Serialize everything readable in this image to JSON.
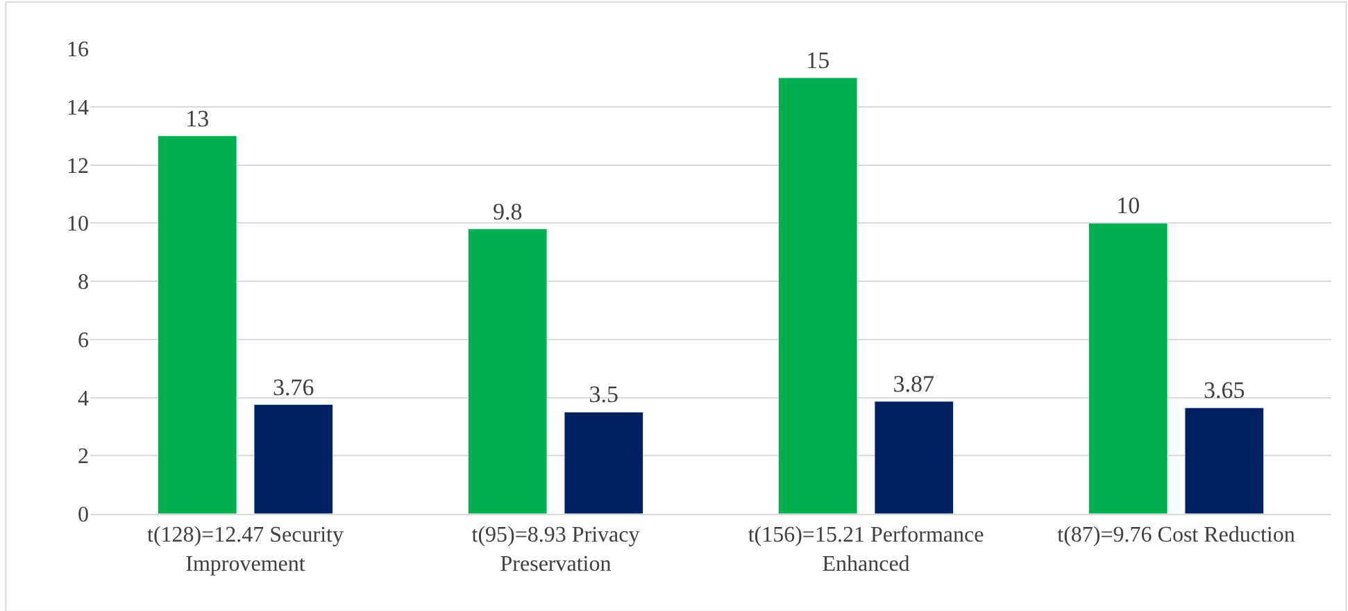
{
  "chart_data": {
    "type": "bar",
    "categories": [
      "t(128)=12.47 Security Improvement",
      "t(95)=8.93 Privacy Preservation",
      "t(156)=15.21 Performance Enhanced",
      "t(87)=9.76 Cost Reduction"
    ],
    "series": [
      {
        "color": "#00b050",
        "values": [
          13,
          9.8,
          15,
          10
        ]
      },
      {
        "color": "#002060",
        "values": [
          3.76,
          3.5,
          3.87,
          3.65
        ]
      }
    ],
    "ylim": [
      0,
      16
    ],
    "yticks": [
      0,
      2,
      4,
      6,
      8,
      10,
      12,
      14,
      16
    ],
    "grid": "y",
    "data_labels": true
  }
}
